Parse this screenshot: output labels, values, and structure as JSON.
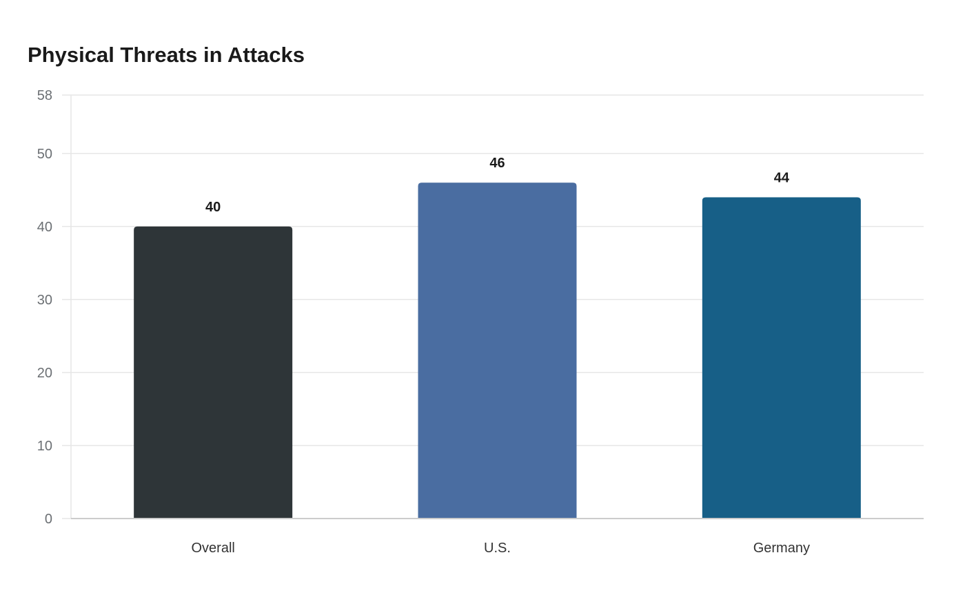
{
  "chart_data": {
    "type": "bar",
    "title": "Physical Threats in Attacks",
    "xlabel": "",
    "ylabel": "",
    "categories": [
      "Overall",
      "U.S.",
      "Germany"
    ],
    "values": [
      40,
      46,
      44
    ],
    "ylim": [
      0,
      58
    ],
    "yticks": [
      0,
      10,
      20,
      30,
      40,
      50,
      58
    ],
    "grid": true,
    "legend": false,
    "colors": [
      "#2e3538",
      "#4a6da1",
      "#175f87"
    ]
  }
}
